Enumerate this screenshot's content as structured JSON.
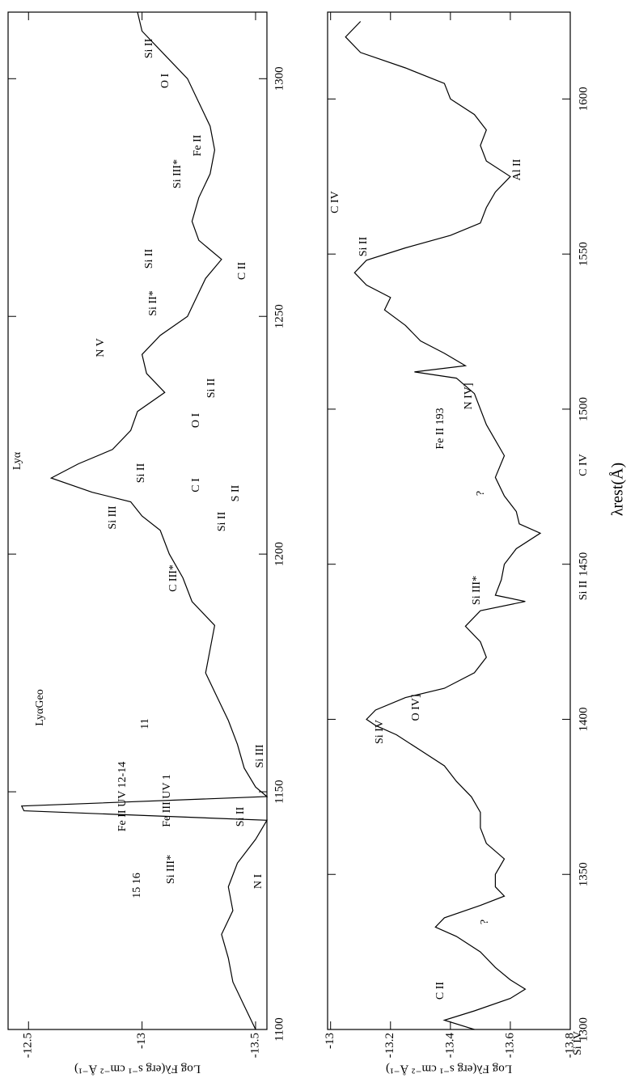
{
  "chart_data": [
    {
      "type": "line",
      "color": "#000000",
      "ylabel": "Log Fλ(erg s⁻¹ cm⁻² Å⁻¹)",
      "x": [
        1100,
        1105,
        1110,
        1115,
        1120,
        1125,
        1130,
        1135,
        1140,
        1144,
        1146,
        1147,
        1149,
        1151,
        1155,
        1160,
        1165,
        1170,
        1175,
        1180,
        1185,
        1190,
        1195,
        1200,
        1205,
        1208,
        1211,
        1213,
        1216,
        1219,
        1222,
        1226,
        1230,
        1234,
        1238,
        1242,
        1246,
        1250,
        1255,
        1258,
        1262,
        1266,
        1270,
        1275,
        1280,
        1285,
        1290,
        1295,
        1300,
        1305,
        1310,
        1314
      ],
      "values": [
        -13.5,
        -13.45,
        -13.4,
        -13.38,
        -13.35,
        -13.4,
        -13.38,
        -13.42,
        -13.5,
        -13.55,
        -12.48,
        -12.47,
        -13.55,
        -13.5,
        -13.45,
        -13.42,
        -13.38,
        -13.33,
        -13.28,
        -13.3,
        -13.32,
        -13.22,
        -13.18,
        -13.12,
        -13.08,
        -13.0,
        -12.95,
        -12.78,
        -12.6,
        -12.72,
        -12.87,
        -12.95,
        -12.98,
        -13.1,
        -13.02,
        -13.0,
        -13.08,
        -13.2,
        -13.25,
        -13.28,
        -13.35,
        -13.25,
        -13.22,
        -13.25,
        -13.3,
        -13.32,
        -13.3,
        -13.25,
        -13.2,
        -13.1,
        -13.0,
        -12.98
      ],
      "xlim": [
        1100,
        1314
      ],
      "ylim": [
        -13.55,
        -12.41
      ],
      "xticks": [
        1100,
        1150,
        1200,
        1250,
        1300
      ],
      "yticks": [
        -12.5,
        -13,
        -13.5
      ],
      "annotations": [
        "15 16",
        "Si III*",
        "Fe II UV 12-14",
        "Fe III UV 1",
        "N I",
        "Si II",
        "Si III",
        "11",
        "LyαGeo",
        "C III*",
        "S II",
        "Si II",
        "Si II",
        "Si III",
        "C I",
        "Lyα",
        "O I",
        "Si II",
        "N V",
        "Si II*",
        "C II",
        "Si II",
        "Fe II",
        "Si III*",
        "O I",
        "Si II"
      ]
    },
    {
      "type": "line",
      "color": "#000000",
      "ylabel": "Log Fλ(erg s⁻¹ cm⁻² Å⁻¹)",
      "xlabel": "λrest(Å)",
      "x": [
        1300,
        1303,
        1306,
        1310,
        1313,
        1316,
        1320,
        1325,
        1330,
        1333,
        1336,
        1340,
        1343,
        1346,
        1350,
        1355,
        1360,
        1365,
        1370,
        1375,
        1380,
        1385,
        1390,
        1395,
        1398,
        1400,
        1403,
        1407,
        1410,
        1415,
        1420,
        1425,
        1430,
        1435,
        1438,
        1440,
        1445,
        1450,
        1455,
        1460,
        1463,
        1467,
        1472,
        1478,
        1485,
        1490,
        1495,
        1500,
        1505,
        1510,
        1512,
        1514,
        1518,
        1522,
        1527,
        1532,
        1536,
        1540,
        1544,
        1548,
        1552,
        1556,
        1560,
        1565,
        1570,
        1575,
        1580,
        1585,
        1590,
        1595,
        1600,
        1605,
        1610,
        1615,
        1620,
        1625
      ],
      "values": [
        -13.48,
        -13.38,
        -13.48,
        -13.6,
        -13.65,
        -13.6,
        -13.55,
        -13.5,
        -13.42,
        -13.35,
        -13.38,
        -13.5,
        -13.58,
        -13.55,
        -13.55,
        -13.58,
        -13.52,
        -13.5,
        -13.5,
        -13.47,
        -13.42,
        -13.38,
        -13.3,
        -13.22,
        -13.15,
        -13.12,
        -13.15,
        -13.25,
        -13.38,
        -13.48,
        -13.52,
        -13.5,
        -13.45,
        -13.5,
        -13.65,
        -13.55,
        -13.57,
        -13.58,
        -13.62,
        -13.7,
        -13.63,
        -13.62,
        -13.58,
        -13.55,
        -13.58,
        -13.55,
        -13.52,
        -13.5,
        -13.48,
        -13.42,
        -13.28,
        -13.45,
        -13.38,
        -13.3,
        -13.25,
        -13.18,
        -13.2,
        -13.12,
        -13.08,
        -13.12,
        -13.25,
        -13.4,
        -13.5,
        -13.52,
        -13.55,
        -13.6,
        -13.52,
        -13.5,
        -13.52,
        -13.48,
        -13.4,
        -13.38,
        -13.25,
        -13.1,
        -13.05,
        -13.1
      ],
      "xlim": [
        1300,
        1628
      ],
      "ylim": [
        -13.8,
        -12.99
      ],
      "xticks": [
        1300,
        1350,
        1400,
        1450,
        1500,
        1550,
        1600
      ],
      "yticks": [
        -13,
        -13.2,
        -13.4,
        -13.6,
        -13.8
      ],
      "annotations": [
        "C II",
        "?",
        "Si IV",
        "Si IV",
        "O IV]",
        "Si III*",
        "?",
        "Si II",
        "C IV",
        "Fe II 193",
        "N IV]",
        "Si II",
        "C IV",
        "Al II"
      ]
    }
  ]
}
